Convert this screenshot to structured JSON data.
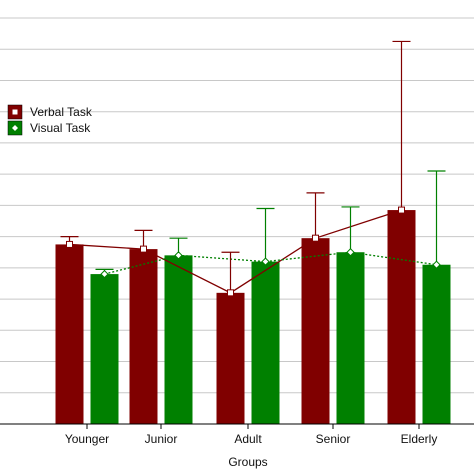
{
  "chart_data": {
    "type": "bar",
    "categories": [
      "Younger",
      "Junior",
      "Adult",
      "Senior",
      "Elderly"
    ],
    "xlabel": "Groups",
    "ylabel": "",
    "ylim": [
      0,
      13
    ],
    "grid": "horizontal",
    "legend_position": "left",
    "series": [
      {
        "name": "Verbal Task",
        "color": "#800000",
        "line_style": "solid",
        "marker": "square",
        "values": [
          5.75,
          5.6,
          4.2,
          5.95,
          6.85
        ],
        "error_upper": [
          6.0,
          6.2,
          5.5,
          7.4,
          12.25
        ]
      },
      {
        "name": "Visual Task",
        "color": "#008000",
        "line_style": "dotted",
        "marker": "diamond",
        "values": [
          4.8,
          5.4,
          5.2,
          5.5,
          5.1
        ],
        "error_upper": [
          4.95,
          5.95,
          6.9,
          6.95,
          8.1
        ]
      }
    ]
  }
}
